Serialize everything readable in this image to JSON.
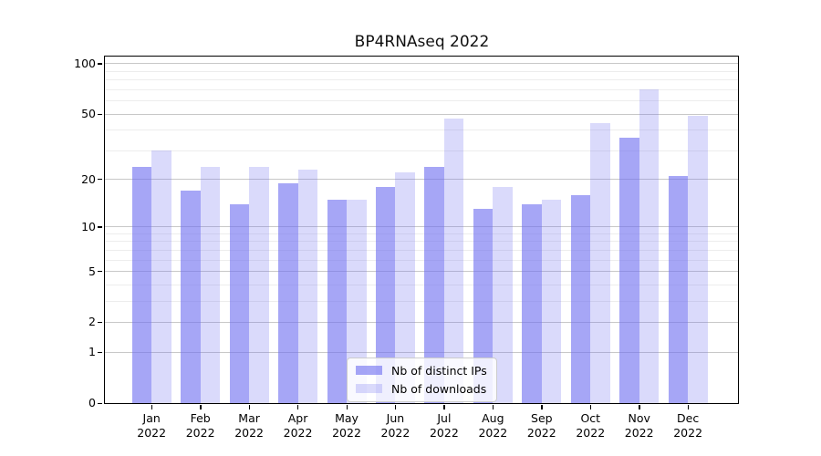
{
  "figure": {
    "title": "BP4RNAseq 2022"
  },
  "chart_data": {
    "type": "bar",
    "title": "BP4RNAseq 2022",
    "x_categories": [
      "Jan",
      "Feb",
      "Mar",
      "Apr",
      "May",
      "Jun",
      "Jul",
      "Aug",
      "Sep",
      "Oct",
      "Nov",
      "Dec"
    ],
    "x_year": "2022",
    "series": [
      {
        "name": "Nb of distinct IPs",
        "color": "rgba(112,112,240,0.62)",
        "values": [
          24,
          17,
          14,
          19,
          15,
          18,
          24,
          13,
          14,
          16,
          36,
          21
        ]
      },
      {
        "name": "Nb of downloads",
        "color": "rgba(112,112,240,0.26)",
        "values": [
          30,
          24,
          24,
          23,
          15,
          22,
          47,
          18,
          15,
          44,
          70,
          49
        ]
      }
    ],
    "y_axis": {
      "scale": "log1p",
      "major_ticks": [
        0,
        1,
        2,
        5,
        10,
        20,
        50,
        100
      ],
      "minor_gridlines": [
        3,
        4,
        6,
        7,
        8,
        9,
        30,
        40,
        60,
        70,
        80,
        90
      ]
    },
    "legend": {
      "position": "lower center"
    },
    "colors": {
      "major_grid": "#c8c8c8",
      "minor_grid": "#ededed",
      "spine": "#000000",
      "text": "#000000"
    },
    "grid": true
  }
}
